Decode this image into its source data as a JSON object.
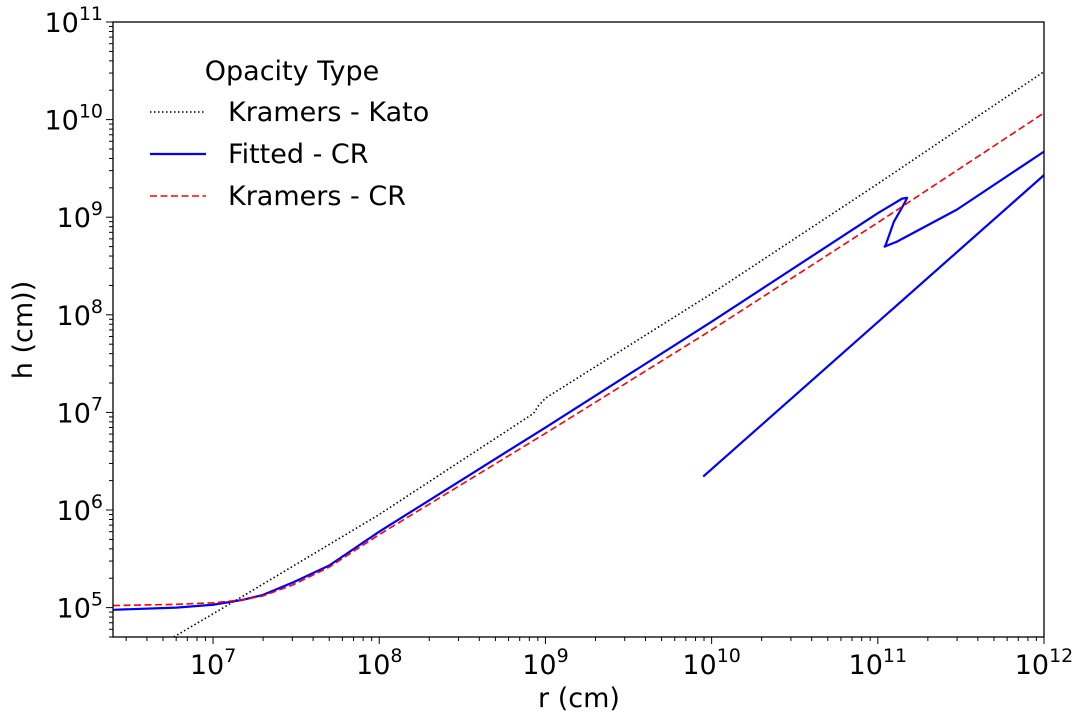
{
  "chart_data": {
    "type": "line",
    "xscale": "log",
    "yscale": "log",
    "xlabel": "r (cm)",
    "ylabel": "h (cm))",
    "xlim": [
      2500000,
      1000000000000
    ],
    "ylim": [
      50000,
      100000000000
    ],
    "grid": false,
    "x_ticks": [
      {
        "base": "10",
        "exp": "7",
        "value": 10000000
      },
      {
        "base": "10",
        "exp": "8",
        "value": 100000000
      },
      {
        "base": "10",
        "exp": "9",
        "value": 1000000000
      },
      {
        "base": "10",
        "exp": "10",
        "value": 10000000000
      },
      {
        "base": "10",
        "exp": "11",
        "value": 100000000000
      },
      {
        "base": "10",
        "exp": "12",
        "value": 1000000000000
      }
    ],
    "y_ticks": [
      {
        "base": "10",
        "exp": "5",
        "value": 100000
      },
      {
        "base": "10",
        "exp": "6",
        "value": 1000000
      },
      {
        "base": "10",
        "exp": "7",
        "value": 10000000
      },
      {
        "base": "10",
        "exp": "8",
        "value": 100000000
      },
      {
        "base": "10",
        "exp": "9",
        "value": 1000000000
      },
      {
        "base": "10",
        "exp": "10",
        "value": 10000000000
      },
      {
        "base": "10",
        "exp": "11",
        "value": 100000000000
      }
    ],
    "legend": {
      "title": "Opacity Type",
      "position": "upper-left"
    },
    "series": [
      {
        "name": "Kramers - Kato",
        "color": "#000000",
        "style": "dotted",
        "points": [
          [
            5800000,
            50000
          ],
          [
            15000000,
            130000
          ],
          [
            100000000,
            900000
          ],
          [
            850000000,
            9800000
          ],
          [
            900000000,
            11500000
          ],
          [
            1000000000,
            14000000
          ],
          [
            10000000000,
            165000000
          ],
          [
            100000000000,
            2200000000
          ],
          [
            1000000000000,
            31000000000
          ]
        ]
      },
      {
        "name": "Fitted - CR",
        "color": "#0000ff",
        "style": "solid",
        "points": [
          [
            2500000,
            95000
          ],
          [
            6000000,
            100000
          ],
          [
            10000000,
            107000
          ],
          [
            15000000,
            120000
          ],
          [
            20000000,
            135000
          ],
          [
            30000000,
            180000
          ],
          [
            50000000,
            270000
          ],
          [
            100000000,
            600000
          ],
          [
            1000000000,
            7000000
          ],
          [
            10000000000,
            85000000
          ],
          [
            100000000000,
            1100000000
          ],
          [
            140000000000,
            1550000000
          ],
          [
            150000000000,
            1580000000
          ],
          [
            145000000000,
            1400000000
          ],
          [
            125000000000,
            900000000
          ],
          [
            112000000000,
            530000000
          ],
          [
            110000000000,
            500000000
          ],
          [
            130000000000,
            560000000
          ],
          [
            300000000000,
            1200000000
          ],
          [
            1000000000000,
            4700000000
          ]
        ]
      },
      {
        "name": "Fitted - CR",
        "color": "#0000ff",
        "style": "solid",
        "points": [
          [
            8900000000,
            2200000
          ],
          [
            1000000000000,
            2700000000
          ]
        ]
      },
      {
        "name": "Kramers - CR",
        "color": "#ff0000",
        "style": "dashed",
        "points": [
          [
            2500000,
            105000
          ],
          [
            6000000,
            108000
          ],
          [
            10000000,
            112000
          ],
          [
            15000000,
            120000
          ],
          [
            20000000,
            132000
          ],
          [
            30000000,
            170000
          ],
          [
            50000000,
            260000
          ],
          [
            100000000,
            560000
          ],
          [
            1000000000,
            6100000
          ],
          [
            10000000000,
            70000000
          ],
          [
            100000000000,
            880000000
          ],
          [
            1000000000000,
            11700000000
          ]
        ]
      }
    ],
    "legend_entries": [
      {
        "label": "Kramers - Kato",
        "color": "#000000",
        "style": "dotted"
      },
      {
        "label": "Fitted - CR",
        "color": "#0000ff",
        "style": "solid"
      },
      {
        "label": "Kramers - CR",
        "color": "#ff0000",
        "style": "dashed"
      }
    ]
  }
}
